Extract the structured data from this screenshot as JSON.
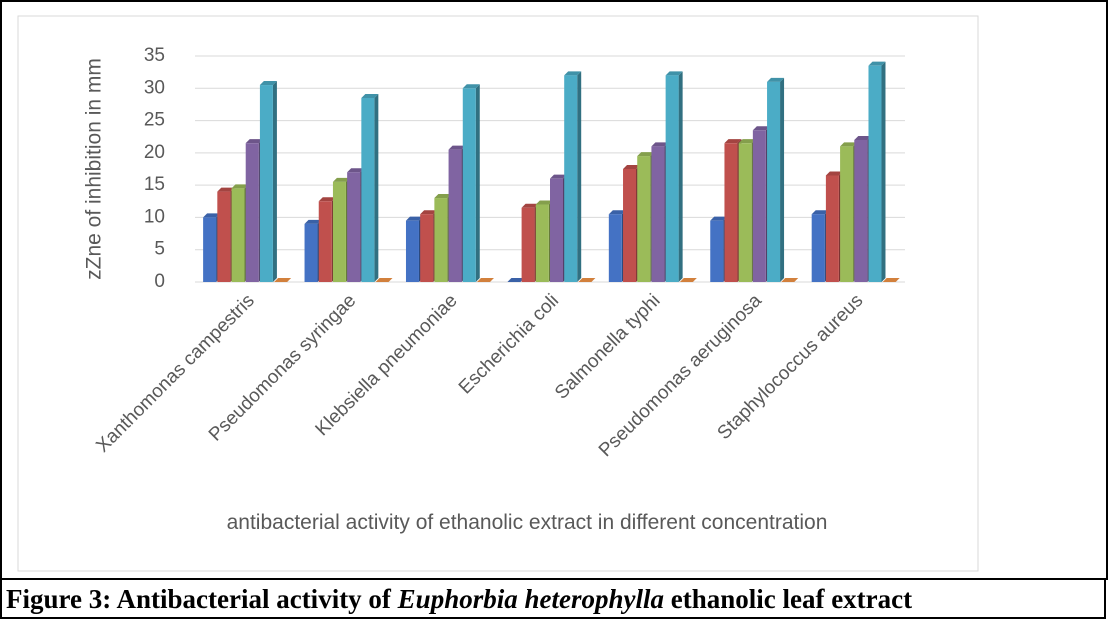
{
  "chart_data": {
    "type": "bar",
    "categories": [
      "Xanthomonas campestris",
      "Pseudomonas syringae",
      "Klebsiella pneumoniae",
      "Escherichia coli",
      "Salmonella typhi",
      "Pseudomonas aeruginosa",
      "Staphylococcus aureus"
    ],
    "series": [
      {
        "color": "#4472c4",
        "values": [
          10,
          9,
          9.5,
          0,
          10.5,
          9.5,
          10.5
        ]
      },
      {
        "color": "#c0504d",
        "values": [
          14,
          12.5,
          10.5,
          11.5,
          17.5,
          21.5,
          16.5
        ]
      },
      {
        "color": "#9bbb59",
        "values": [
          14.5,
          15.5,
          13,
          12,
          19.5,
          21.5,
          21
        ]
      },
      {
        "color": "#8064a2",
        "values": [
          21.5,
          17,
          20.5,
          16,
          21,
          23.5,
          22
        ]
      },
      {
        "color": "#4bacc6",
        "values": [
          30.5,
          28.5,
          30,
          32,
          32,
          31,
          33.5
        ]
      },
      {
        "color": "#f79646",
        "values": [
          0,
          0,
          0,
          0,
          0,
          0,
          0
        ]
      }
    ],
    "ylabel": "zZne of inhibition in mm",
    "xlabel": "antibacterial activity of ethanolic extract in different concentration",
    "ylim": [
      0,
      35
    ],
    "yticks": [
      0,
      5,
      10,
      15,
      20,
      25,
      30,
      35
    ],
    "grid": true
  },
  "caption": {
    "prefix": "Figure 3: Antibacterial activity of ",
    "species": "Euphorbia heterophylla",
    "suffix": " ethanolic leaf extract"
  }
}
